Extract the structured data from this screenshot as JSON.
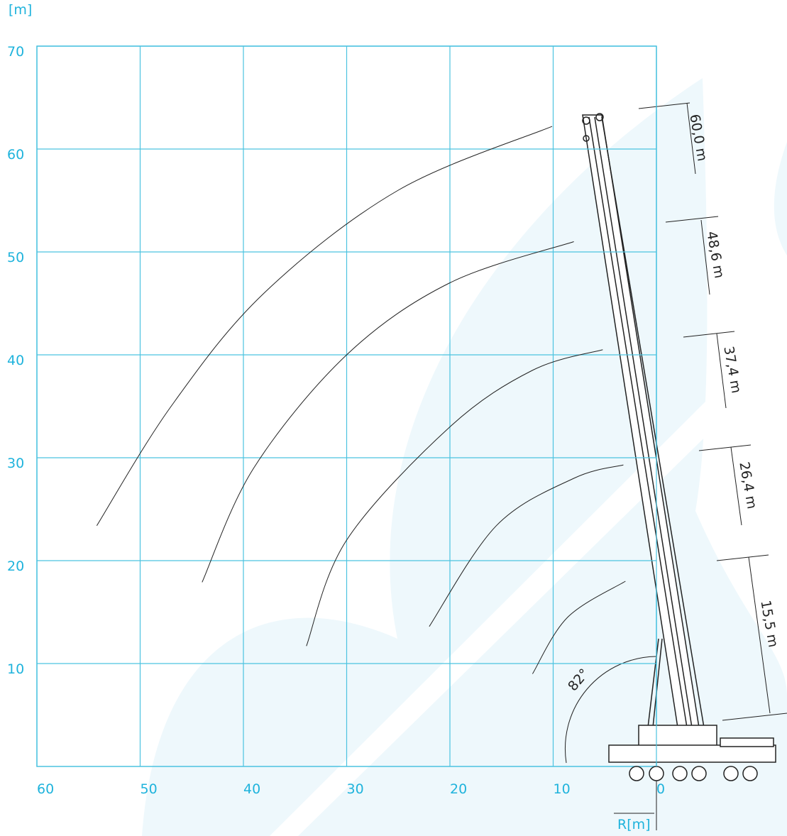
{
  "chart_data": {
    "type": "line",
    "y_label": "[m]",
    "x_label": "R[m]",
    "xlim": [
      60,
      0
    ],
    "ylim": [
      0,
      70
    ],
    "xticks": [
      60,
      50,
      40,
      30,
      20,
      10,
      0
    ],
    "yticks": [
      10,
      20,
      30,
      40,
      50,
      60,
      70
    ],
    "grid": true,
    "grid_color": "#4cc3e0",
    "color": "#222222",
    "series": [
      {
        "x": [
          54.2,
          47,
          38,
          25,
          10.1
        ],
        "values": [
          23.4,
          35,
          46,
          56,
          62.2
        ]
      },
      {
        "x": [
          44,
          39,
          30,
          20,
          8
        ],
        "values": [
          17.9,
          29,
          40,
          47,
          51
        ]
      },
      {
        "x": [
          33.9,
          30,
          20,
          12,
          5.2
        ],
        "values": [
          11.7,
          22,
          33,
          38.5,
          40.5
        ]
      },
      {
        "x": [
          22,
          15.5,
          8,
          3.2
        ],
        "values": [
          13.6,
          23.4,
          28,
          29.3
        ]
      },
      {
        "x": [
          12,
          8.6,
          3
        ],
        "values": [
          9,
          14.5,
          18
        ]
      }
    ],
    "annotations": [
      "60,0 m",
      "48,6 m",
      "37,4 m",
      "26,4 m",
      "15,5 m",
      "82°"
    ]
  }
}
